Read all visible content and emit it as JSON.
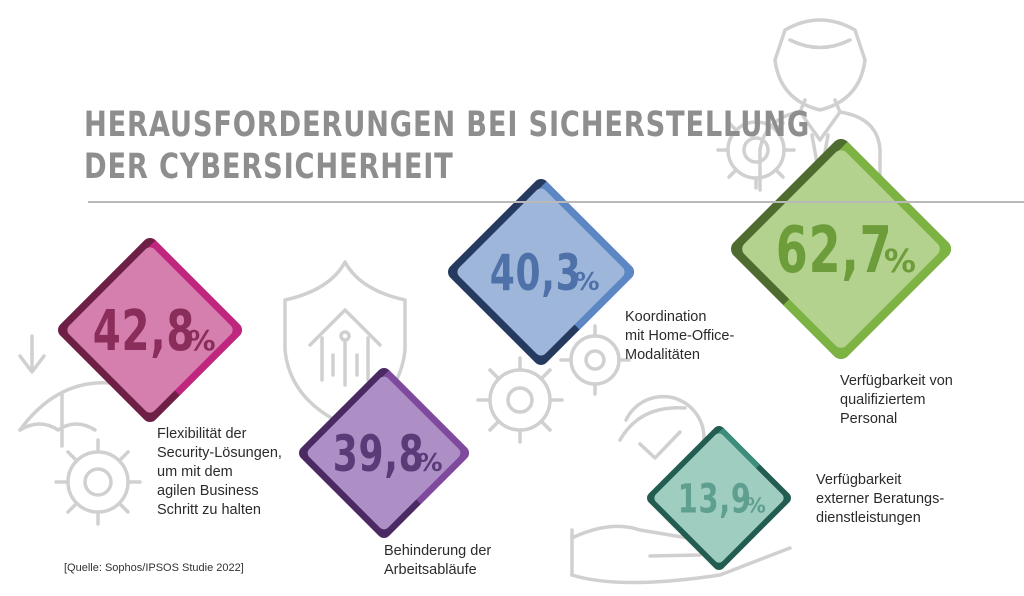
{
  "title": {
    "line1": "HERAUSFORDERUNGEN BEI SICHERSTELLUNG",
    "line2": "DER CYBERSICHERHEIT"
  },
  "source": "[Quelle: Sophos/IPSOS Studie 2022]",
  "colors": {
    "magenta": "#c0267e",
    "purple": "#7f4a9e",
    "blue": "#5d86c4",
    "green": "#7cb342",
    "teal": "#3e8c7c",
    "icon_gray": "#cfcfcf",
    "title_gray": "#8e8e8e"
  },
  "icons": [
    "umbrella-arrow-icon",
    "gear-icon",
    "shield-house-icon",
    "gears-icon",
    "person-icon",
    "hand-gear-icon"
  ],
  "chart_data": {
    "type": "other",
    "unit": "%",
    "items": [
      {
        "id": "flex",
        "value": 42.8,
        "value_label": "42,8",
        "label_lines": [
          "Flexibilität der",
          "Security-Lösungen,",
          "um mit dem",
          "agilen Business",
          "Schritt zu halten"
        ],
        "color": "magenta"
      },
      {
        "id": "arbeit",
        "value": 39.8,
        "value_label": "39,8",
        "label_lines": [
          "Behinderung der",
          "Arbeitsabläufe"
        ],
        "color": "purple"
      },
      {
        "id": "home",
        "value": 40.3,
        "value_label": "40,3",
        "label_lines": [
          "Koordination",
          "mit Home-Office-",
          "Modalitäten"
        ],
        "color": "blue"
      },
      {
        "id": "personal",
        "value": 62.7,
        "value_label": "62,7",
        "label_lines": [
          "Verfügbarkeit von",
          "qualifiziertem",
          "Personal"
        ],
        "color": "green"
      },
      {
        "id": "beratung",
        "value": 13.9,
        "value_label": "13,9",
        "label_lines": [
          "Verfügbarkeit",
          "externer Beratungs-",
          "dienstleistungen"
        ],
        "color": "teal"
      }
    ]
  }
}
